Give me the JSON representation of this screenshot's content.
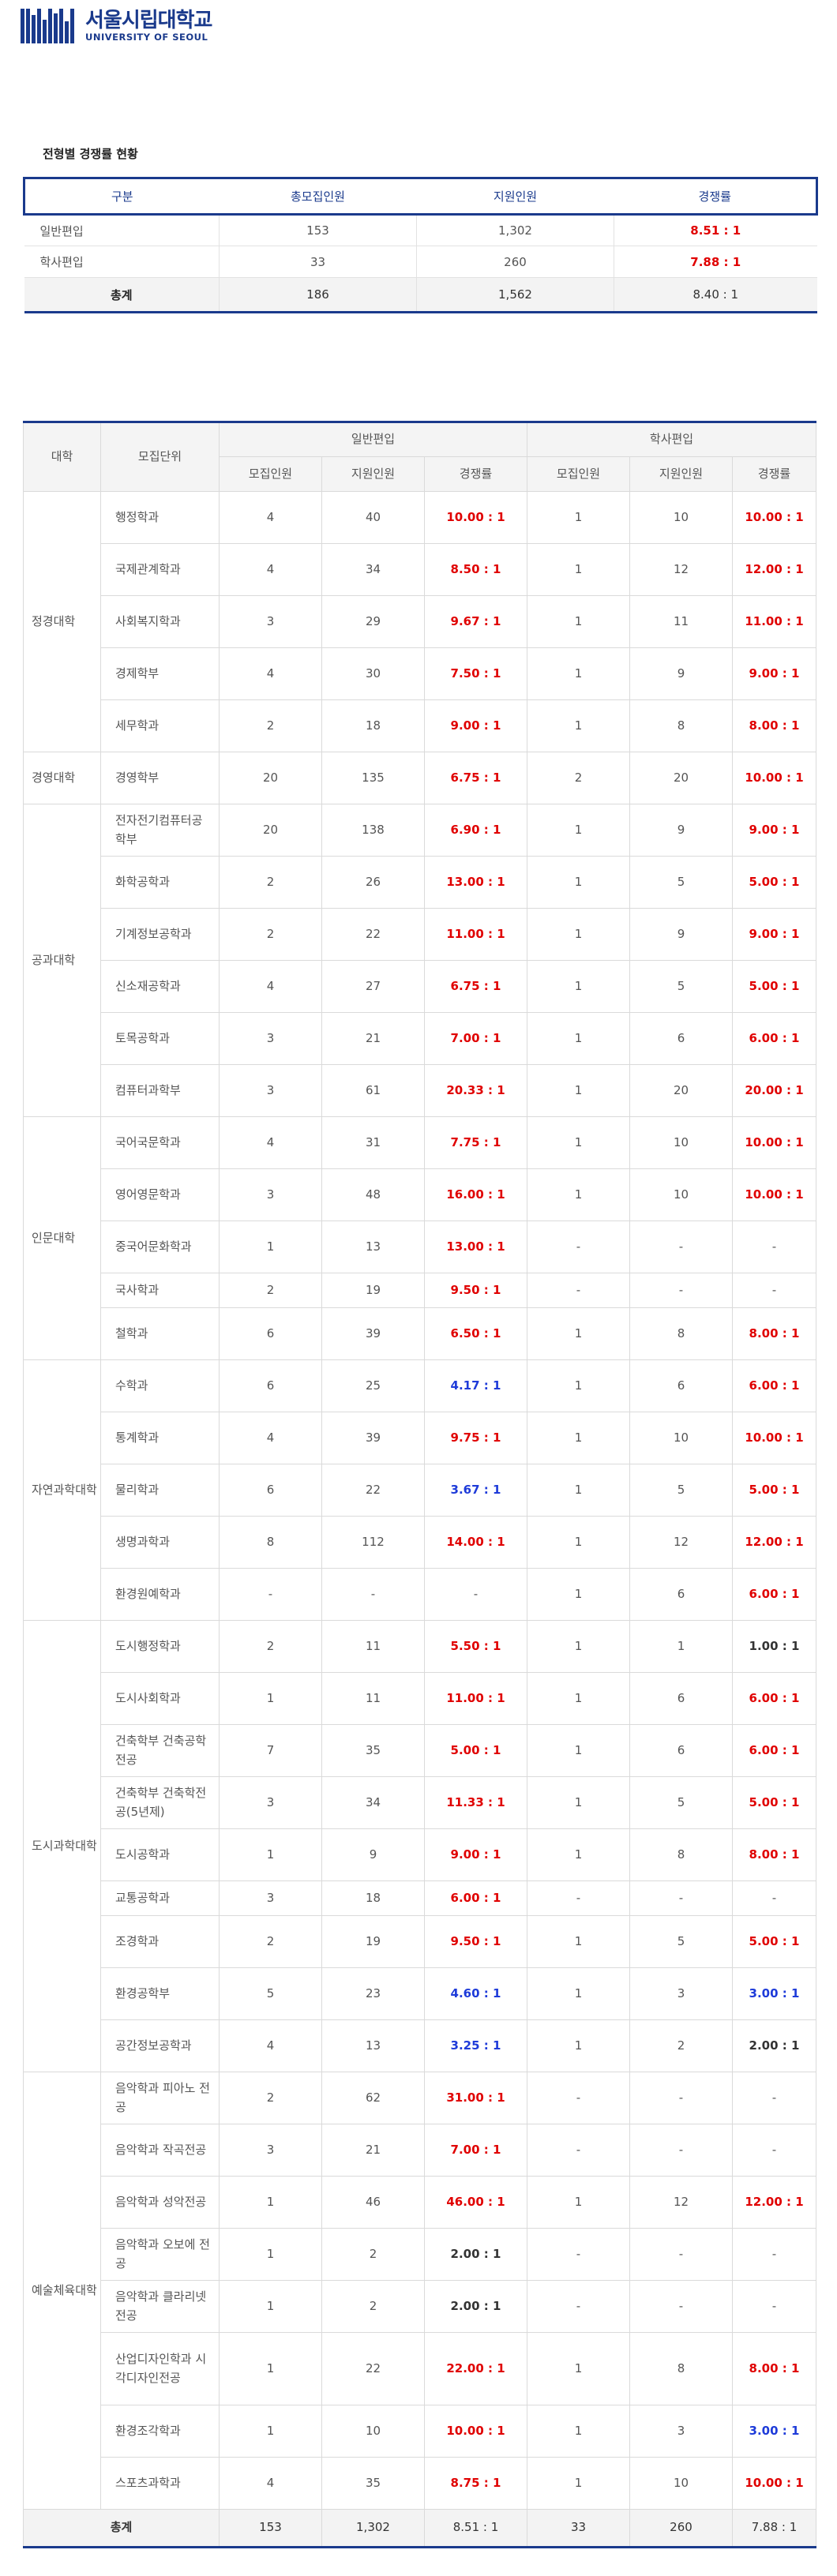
{
  "logo": {
    "kr": "서울시립대학교",
    "en": "UNIVERSITY OF SEOUL"
  },
  "section_title": "전형별 경쟁률 현황",
  "summary": {
    "headers": [
      "구분",
      "총모집인원",
      "지원인원",
      "경쟁률"
    ],
    "rows": [
      {
        "label": "일반편입",
        "quota": "153",
        "applicants": "1,302",
        "ratio": "8.51 : 1"
      },
      {
        "label": "학사편입",
        "quota": "33",
        "applicants": "260",
        "ratio": "7.88 : 1"
      }
    ],
    "total": {
      "label": "총계",
      "quota": "186",
      "applicants": "1,562",
      "ratio": "8.40 : 1"
    }
  },
  "detail": {
    "headers": {
      "college": "대학",
      "unit": "모집단위",
      "general": "일반편입",
      "bachelor": "학사편입",
      "quota": "모집인원",
      "applicants": "지원인원",
      "ratio": "경쟁률"
    },
    "colleges": [
      {
        "name": "정경대학",
        "rows": [
          {
            "unit": "행정학과",
            "gq": "4",
            "ga": "40",
            "gr": "10.00 : 1",
            "gc": "red",
            "bq": "1",
            "ba": "10",
            "br": "10.00 : 1",
            "bc": "red",
            "h": "mid"
          },
          {
            "unit": "국제관계학과",
            "gq": "4",
            "ga": "34",
            "gr": "8.50 : 1",
            "gc": "red",
            "bq": "1",
            "ba": "12",
            "br": "12.00 : 1",
            "bc": "red",
            "h": "mid"
          },
          {
            "unit": "사회복지학과",
            "gq": "3",
            "ga": "29",
            "gr": "9.67 : 1",
            "gc": "red",
            "bq": "1",
            "ba": "11",
            "br": "11.00 : 1",
            "bc": "red",
            "h": "mid"
          },
          {
            "unit": "경제학부",
            "gq": "4",
            "ga": "30",
            "gr": "7.50 : 1",
            "gc": "red",
            "bq": "1",
            "ba": "9",
            "br": "9.00 : 1",
            "bc": "red",
            "h": "mid"
          },
          {
            "unit": "세무학과",
            "gq": "2",
            "ga": "18",
            "gr": "9.00 : 1",
            "gc": "red",
            "bq": "1",
            "ba": "8",
            "br": "8.00 : 1",
            "bc": "red",
            "h": "mid"
          }
        ]
      },
      {
        "name": "경영대학",
        "rows": [
          {
            "unit": "경영학부",
            "gq": "20",
            "ga": "135",
            "gr": "6.75 : 1",
            "gc": "red",
            "bq": "2",
            "ba": "20",
            "br": "10.00 : 1",
            "bc": "red",
            "h": "mid"
          }
        ]
      },
      {
        "name": "공과대학",
        "rows": [
          {
            "unit": "전자전기컴퓨터공학부",
            "gq": "20",
            "ga": "138",
            "gr": "6.90 : 1",
            "gc": "red",
            "bq": "1",
            "ba": "9",
            "br": "9.00 : 1",
            "bc": "red",
            "h": "mid"
          },
          {
            "unit": "화학공학과",
            "gq": "2",
            "ga": "26",
            "gr": "13.00 : 1",
            "gc": "red",
            "bq": "1",
            "ba": "5",
            "br": "5.00 : 1",
            "bc": "red",
            "h": "mid"
          },
          {
            "unit": "기계정보공학과",
            "gq": "2",
            "ga": "22",
            "gr": "11.00 : 1",
            "gc": "red",
            "bq": "1",
            "ba": "9",
            "br": "9.00 : 1",
            "bc": "red",
            "h": "mid"
          },
          {
            "unit": "신소재공학과",
            "gq": "4",
            "ga": "27",
            "gr": "6.75 : 1",
            "gc": "red",
            "bq": "1",
            "ba": "5",
            "br": "5.00 : 1",
            "bc": "red",
            "h": "mid"
          },
          {
            "unit": "토목공학과",
            "gq": "3",
            "ga": "21",
            "gr": "7.00 : 1",
            "gc": "red",
            "bq": "1",
            "ba": "6",
            "br": "6.00 : 1",
            "bc": "red",
            "h": "mid"
          },
          {
            "unit": "컴퓨터과학부",
            "gq": "3",
            "ga": "61",
            "gr": "20.33 : 1",
            "gc": "red",
            "bq": "1",
            "ba": "20",
            "br": "20.00 : 1",
            "bc": "red",
            "h": "mid"
          }
        ]
      },
      {
        "name": "인문대학",
        "rows": [
          {
            "unit": "국어국문학과",
            "gq": "4",
            "ga": "31",
            "gr": "7.75 : 1",
            "gc": "red",
            "bq": "1",
            "ba": "10",
            "br": "10.00 : 1",
            "bc": "red",
            "h": "mid"
          },
          {
            "unit": "영어영문학과",
            "gq": "3",
            "ga": "48",
            "gr": "16.00 : 1",
            "gc": "red",
            "bq": "1",
            "ba": "10",
            "br": "10.00 : 1",
            "bc": "red",
            "h": "mid"
          },
          {
            "unit": "중국어문화학과",
            "gq": "1",
            "ga": "13",
            "gr": "13.00 : 1",
            "gc": "red",
            "bq": "-",
            "ba": "-",
            "br": "-",
            "bc": "",
            "h": "mid"
          },
          {
            "unit": "국사학과",
            "gq": "2",
            "ga": "19",
            "gr": "9.50 : 1",
            "gc": "red",
            "bq": "-",
            "ba": "-",
            "br": "-",
            "bc": "",
            "h": "short"
          },
          {
            "unit": "철학과",
            "gq": "6",
            "ga": "39",
            "gr": "6.50 : 1",
            "gc": "red",
            "bq": "1",
            "ba": "8",
            "br": "8.00 : 1",
            "bc": "red",
            "h": "mid"
          }
        ]
      },
      {
        "name": "자연과학대학",
        "rows": [
          {
            "unit": "수학과",
            "gq": "6",
            "ga": "25",
            "gr": "4.17 : 1",
            "gc": "blue",
            "bq": "1",
            "ba": "6",
            "br": "6.00 : 1",
            "bc": "red",
            "h": "mid"
          },
          {
            "unit": "통계학과",
            "gq": "4",
            "ga": "39",
            "gr": "9.75 : 1",
            "gc": "red",
            "bq": "1",
            "ba": "10",
            "br": "10.00 : 1",
            "bc": "red",
            "h": "mid"
          },
          {
            "unit": "물리학과",
            "gq": "6",
            "ga": "22",
            "gr": "3.67 : 1",
            "gc": "blue",
            "bq": "1",
            "ba": "5",
            "br": "5.00 : 1",
            "bc": "red",
            "h": "mid"
          },
          {
            "unit": "생명과학과",
            "gq": "8",
            "ga": "112",
            "gr": "14.00 : 1",
            "gc": "red",
            "bq": "1",
            "ba": "12",
            "br": "12.00 : 1",
            "bc": "red",
            "h": "mid"
          },
          {
            "unit": "환경원예학과",
            "gq": "-",
            "ga": "-",
            "gr": "-",
            "gc": "",
            "bq": "1",
            "ba": "6",
            "br": "6.00 : 1",
            "bc": "red",
            "h": "mid"
          }
        ]
      },
      {
        "name": "도시과학대학",
        "rows": [
          {
            "unit": "도시행정학과",
            "gq": "2",
            "ga": "11",
            "gr": "5.50 : 1",
            "gc": "red",
            "bq": "1",
            "ba": "1",
            "br": "1.00 : 1",
            "bc": "dark",
            "h": "mid"
          },
          {
            "unit": "도시사회학과",
            "gq": "1",
            "ga": "11",
            "gr": "11.00 : 1",
            "gc": "red",
            "bq": "1",
            "ba": "6",
            "br": "6.00 : 1",
            "bc": "red",
            "h": "mid"
          },
          {
            "unit": "건축학부 건축공학전공",
            "gq": "7",
            "ga": "35",
            "gr": "5.00 : 1",
            "gc": "red",
            "bq": "1",
            "ba": "6",
            "br": "6.00 : 1",
            "bc": "red",
            "h": "mid"
          },
          {
            "unit": "건축학부 건축학전공(5년제)",
            "gq": "3",
            "ga": "34",
            "gr": "11.33 : 1",
            "gc": "red",
            "bq": "1",
            "ba": "5",
            "br": "5.00 : 1",
            "bc": "red",
            "h": "mid"
          },
          {
            "unit": "도시공학과",
            "gq": "1",
            "ga": "9",
            "gr": "9.00 : 1",
            "gc": "red",
            "bq": "1",
            "ba": "8",
            "br": "8.00 : 1",
            "bc": "red",
            "h": "mid"
          },
          {
            "unit": "교통공학과",
            "gq": "3",
            "ga": "18",
            "gr": "6.00 : 1",
            "gc": "red",
            "bq": "-",
            "ba": "-",
            "br": "-",
            "bc": "",
            "h": "short"
          },
          {
            "unit": "조경학과",
            "gq": "2",
            "ga": "19",
            "gr": "9.50 : 1",
            "gc": "red",
            "bq": "1",
            "ba": "5",
            "br": "5.00 : 1",
            "bc": "red",
            "h": "mid"
          },
          {
            "unit": "환경공학부",
            "gq": "5",
            "ga": "23",
            "gr": "4.60 : 1",
            "gc": "blue",
            "bq": "1",
            "ba": "3",
            "br": "3.00 : 1",
            "bc": "blue",
            "h": "mid"
          },
          {
            "unit": "공간정보공학과",
            "gq": "4",
            "ga": "13",
            "gr": "3.25 : 1",
            "gc": "blue",
            "bq": "1",
            "ba": "2",
            "br": "2.00 : 1",
            "bc": "dark",
            "h": "mid"
          }
        ]
      },
      {
        "name": "예술체육대학",
        "rows": [
          {
            "unit": "음악학과 피아노 전공",
            "gq": "2",
            "ga": "62",
            "gr": "31.00 : 1",
            "gc": "red",
            "bq": "-",
            "ba": "-",
            "br": "-",
            "bc": "",
            "h": "mid"
          },
          {
            "unit": "음악학과 작곡전공",
            "gq": "3",
            "ga": "21",
            "gr": "7.00 : 1",
            "gc": "red",
            "bq": "-",
            "ba": "-",
            "br": "-",
            "bc": "",
            "h": "mid"
          },
          {
            "unit": "음악학과 성악전공",
            "gq": "1",
            "ga": "46",
            "gr": "46.00 : 1",
            "gc": "red",
            "bq": "1",
            "ba": "12",
            "br": "12.00 : 1",
            "bc": "red",
            "h": "mid"
          },
          {
            "unit": "음악학과 오보에 전공",
            "gq": "1",
            "ga": "2",
            "gr": "2.00 : 1",
            "gc": "dark",
            "bq": "-",
            "ba": "-",
            "br": "-",
            "bc": "",
            "h": "mid"
          },
          {
            "unit": "음악학과 클라리넷 전공",
            "gq": "1",
            "ga": "2",
            "gr": "2.00 : 1",
            "gc": "dark",
            "bq": "-",
            "ba": "-",
            "br": "-",
            "bc": "",
            "h": "mid"
          },
          {
            "unit": "산업디자인학과 시각디자인전공",
            "gq": "1",
            "ga": "22",
            "gr": "22.00 : 1",
            "gc": "red",
            "bq": "1",
            "ba": "8",
            "br": "8.00 : 1",
            "bc": "red",
            "h": "tall"
          },
          {
            "unit": "환경조각학과",
            "gq": "1",
            "ga": "10",
            "gr": "10.00 : 1",
            "gc": "red",
            "bq": "1",
            "ba": "3",
            "br": "3.00 : 1",
            "bc": "blue",
            "h": "mid"
          },
          {
            "unit": "스포츠과학과",
            "gq": "4",
            "ga": "35",
            "gr": "8.75 : 1",
            "gc": "red",
            "bq": "1",
            "ba": "10",
            "br": "10.00 : 1",
            "bc": "red",
            "h": "mid"
          }
        ]
      }
    ],
    "total": {
      "label": "총계",
      "gq": "153",
      "ga": "1,302",
      "gr": "8.51 : 1",
      "bq": "33",
      "ba": "260",
      "br": "7.88 : 1"
    }
  }
}
